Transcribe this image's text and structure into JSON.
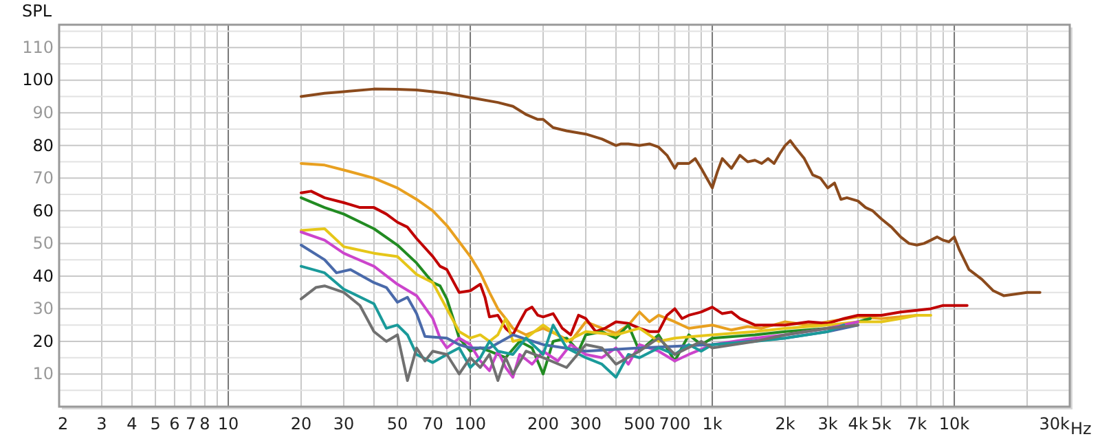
{
  "chart_data": {
    "type": "line",
    "ylabel": "SPL",
    "log": "x",
    "grid": true,
    "marker": "none",
    "line_style": "solid",
    "xlim": [
      2,
      30000
    ],
    "ylim": [
      0,
      117
    ],
    "xticks": [
      2,
      3,
      4,
      5,
      6,
      7,
      8,
      {
        "value": 9,
        "label": null
      },
      10,
      20,
      30,
      {
        "value": 40,
        "label": null
      },
      50,
      {
        "value": 60,
        "label": null
      },
      70,
      {
        "value": 80,
        "label": null
      },
      {
        "value": 90,
        "label": null
      },
      100,
      200,
      300,
      {
        "value": 400,
        "label": null
      },
      500,
      {
        "value": 600,
        "label": null
      },
      700,
      {
        "value": 800,
        "label": null
      },
      {
        "value": 900,
        "label": null
      },
      {
        "value": 1000,
        "label": "1k"
      },
      {
        "value": 2000,
        "label": "2k"
      },
      {
        "value": 3000,
        "label": "3k"
      },
      {
        "value": 4000,
        "label": "4k"
      },
      {
        "value": 5000,
        "label": "5k"
      },
      {
        "value": 6000,
        "label": null
      },
      {
        "value": 7000,
        "label": "7k"
      },
      {
        "value": 8000,
        "label": null
      },
      {
        "value": 9000,
        "label": null
      },
      {
        "value": 10000,
        "label": "10k"
      },
      {
        "value": 20000,
        "label": null
      },
      {
        "value": 30000,
        "label": "30k"
      }
    ],
    "xlabel": "Hz",
    "yticks": [
      {
        "value": 5,
        "label": null
      },
      10,
      {
        "value": 15,
        "label": null
      },
      20,
      {
        "value": 25,
        "label": null
      },
      30,
      {
        "value": 35,
        "label": null
      },
      40,
      {
        "value": 45,
        "label": null
      },
      50,
      {
        "value": 55,
        "label": null
      },
      60,
      {
        "value": 65,
        "label": null
      },
      70,
      {
        "value": 75,
        "label": null
      },
      80,
      {
        "value": 85,
        "label": null
      },
      90,
      {
        "value": 95,
        "label": null
      },
      100,
      {
        "value": 105,
        "label": null
      },
      110,
      {
        "value": 115,
        "label": null
      }
    ],
    "series": [
      {
        "color": "#8b4a1c",
        "x": [
          20,
          25,
          30,
          40,
          50,
          60,
          70,
          80,
          100,
          130,
          150,
          170,
          190,
          200,
          220,
          250,
          300,
          350,
          400,
          420,
          450,
          500,
          550,
          600,
          650,
          700,
          720,
          800,
          850,
          900,
          1000,
          1050,
          1100,
          1200,
          1300,
          1400,
          1500,
          1600,
          1700,
          1800,
          1900,
          2000,
          2100,
          2200,
          2400,
          2600,
          2800,
          3000,
          3200,
          3400,
          3600,
          4000,
          4300,
          4600,
          5000,
          5500,
          6000,
          6500,
          7000,
          7500,
          8000,
          8500,
          9000,
          9500,
          10000,
          10500,
          11500,
          13000,
          14500,
          16000,
          18000,
          20000,
          22600
        ],
        "values": [
          95,
          96,
          96.5,
          97.3,
          97.2,
          97,
          96.5,
          96,
          94.7,
          93.2,
          92,
          89.5,
          88,
          88,
          85.5,
          84.5,
          83.5,
          82,
          80,
          80.5,
          80.5,
          80,
          80.5,
          79.5,
          77,
          73,
          74.5,
          74.5,
          76,
          73,
          67,
          72,
          76,
          73,
          77,
          75,
          75.5,
          74.5,
          76,
          74.5,
          77.5,
          80,
          81.5,
          79.5,
          76,
          71,
          70,
          67,
          68.5,
          63.5,
          64,
          63,
          61,
          60,
          57.5,
          55,
          52,
          50,
          49.5,
          50,
          51,
          52,
          51,
          50.5,
          52,
          48,
          42,
          39,
          35.5,
          34,
          34.5,
          35,
          35
        ]
      },
      {
        "color": "#e8a020",
        "x": [
          20,
          25,
          30,
          40,
          50,
          60,
          70,
          80,
          90,
          100,
          110,
          120,
          130,
          140,
          150,
          170,
          200,
          230,
          260,
          300,
          350,
          400,
          450,
          500,
          550,
          600,
          700,
          800,
          900,
          1000,
          1200,
          1400,
          1600,
          2000,
          2500,
          3000,
          4000,
          5000,
          6000,
          7000,
          7800
        ],
        "values": [
          74.5,
          74,
          72.5,
          70,
          67,
          63.5,
          60,
          55.5,
          50.5,
          46,
          41,
          35,
          30,
          27,
          24,
          22,
          24,
          22,
          20,
          26,
          24,
          22.5,
          25,
          29,
          26,
          28,
          26,
          24,
          24.5,
          25,
          23.5,
          24.5,
          24,
          26,
          25,
          26,
          27.5,
          27,
          27.5,
          28,
          28
        ]
      },
      {
        "color": "#c00000",
        "x": [
          20,
          22,
          25,
          30,
          35,
          40,
          45,
          50,
          55,
          60,
          70,
          75,
          80,
          90,
          100,
          110,
          115,
          120,
          130,
          140,
          150,
          160,
          170,
          180,
          190,
          200,
          220,
          240,
          260,
          280,
          300,
          330,
          360,
          400,
          450,
          500,
          550,
          600,
          650,
          700,
          750,
          800,
          900,
          1000,
          1100,
          1200,
          1300,
          1400,
          1500,
          2000,
          2500,
          3000,
          3500,
          4000,
          5000,
          6000,
          7000,
          8000,
          9000,
          10000,
          11300
        ],
        "values": [
          65.5,
          66,
          64,
          62.5,
          61,
          61,
          59,
          56.5,
          55,
          51.5,
          46,
          43,
          42,
          35,
          35.5,
          37.5,
          33.5,
          27.5,
          28,
          24,
          22,
          26,
          29.5,
          30.5,
          28,
          27.5,
          28.5,
          24,
          22,
          28,
          27,
          23,
          24,
          26,
          25.5,
          24,
          23,
          23,
          28,
          30,
          27,
          28,
          29,
          30.5,
          28.5,
          29,
          27,
          26,
          25,
          25,
          26,
          25.5,
          27,
          28,
          28,
          29,
          29.5,
          30,
          31,
          31,
          31
        ]
      },
      {
        "color": "#228b22",
        "x": [
          20,
          25,
          30,
          40,
          50,
          60,
          70,
          75,
          80,
          85,
          90,
          100,
          110,
          120,
          140,
          160,
          180,
          200,
          220,
          250,
          280,
          300,
          350,
          400,
          450,
          500,
          600,
          700,
          800,
          900,
          1000,
          1500,
          2000,
          3000,
          4000,
          4500
        ],
        "values": [
          64,
          61,
          59,
          54.5,
          49.5,
          44,
          38,
          37,
          33,
          27,
          21,
          17,
          18,
          17,
          15,
          20,
          18,
          10,
          20,
          21,
          17,
          22,
          23,
          21,
          25,
          17,
          22,
          14,
          22,
          19,
          21,
          22,
          23,
          24,
          26,
          27
        ]
      },
      {
        "color": "#e6c619",
        "x": [
          20,
          25,
          30,
          40,
          50,
          60,
          70,
          80,
          90,
          100,
          110,
          120,
          130,
          140,
          150,
          170,
          200,
          250,
          300,
          400,
          500,
          600,
          700,
          1000,
          1500,
          2000,
          3000,
          4000,
          5000,
          6000,
          7000,
          8000
        ],
        "values": [
          54,
          54.5,
          49,
          47,
          46,
          40.5,
          38,
          30,
          23,
          21,
          22,
          20,
          22,
          27,
          20,
          21,
          25,
          20,
          23,
          22,
          24,
          20,
          21,
          22,
          23,
          24,
          25,
          26,
          26,
          27,
          28,
          28
        ]
      },
      {
        "color": "#cc44cc",
        "x": [
          20,
          25,
          30,
          40,
          50,
          60,
          70,
          75,
          80,
          90,
          100,
          110,
          120,
          130,
          140,
          150,
          160,
          180,
          200,
          230,
          260,
          300,
          350,
          400,
          450,
          500,
          600,
          700,
          800,
          1000,
          1500,
          2000,
          3000,
          4000
        ],
        "values": [
          53.5,
          51,
          47,
          43,
          37.5,
          34,
          27,
          21,
          18,
          21,
          19,
          14,
          11,
          17,
          12,
          9,
          16,
          13,
          17,
          14,
          19,
          16,
          15,
          18,
          13,
          19,
          17,
          14,
          16,
          19,
          21,
          22,
          24,
          26
        ]
      },
      {
        "color": "#4a6aaa",
        "x": [
          20,
          25,
          28,
          32,
          40,
          45,
          50,
          55,
          60,
          65,
          80,
          90,
          100,
          120,
          150,
          200,
          300,
          500,
          1000,
          2000,
          3000,
          4000
        ],
        "values": [
          49.5,
          45,
          41,
          42,
          38,
          36.5,
          32,
          33.5,
          28.5,
          21.5,
          21,
          19,
          18,
          18,
          22,
          19,
          17,
          18,
          19,
          21,
          23,
          25
        ]
      },
      {
        "color": "#1a9a9a",
        "x": [
          20,
          25,
          30,
          40,
          45,
          50,
          55,
          60,
          70,
          80,
          90,
          100,
          110,
          120,
          130,
          150,
          170,
          200,
          220,
          250,
          300,
          350,
          400,
          450,
          500,
          600,
          700,
          800,
          900,
          1000,
          1500,
          2000,
          3000,
          3500
        ],
        "values": [
          43,
          41,
          36,
          31.5,
          24,
          25,
          22,
          16,
          13.5,
          16,
          18,
          12,
          15,
          20,
          17,
          16,
          21,
          16,
          25,
          18,
          15,
          13,
          9,
          16,
          15,
          18,
          16,
          19,
          17,
          19,
          20,
          21,
          23,
          25
        ]
      },
      {
        "color": "#707070",
        "x": [
          20,
          23,
          25,
          30,
          35,
          40,
          45,
          50,
          55,
          60,
          65,
          70,
          80,
          90,
          100,
          110,
          120,
          130,
          140,
          150,
          170,
          200,
          250,
          300,
          350,
          400,
          500,
          600,
          700,
          900,
          1000,
          1500,
          2000,
          3000,
          4000
        ],
        "values": [
          33,
          36.5,
          37,
          35,
          31,
          23,
          20,
          22,
          8,
          18,
          14,
          17,
          16,
          10,
          15,
          12,
          16,
          8,
          15,
          10,
          17,
          15,
          12,
          19,
          18,
          13,
          17,
          21,
          16,
          20,
          18,
          20,
          22,
          24,
          25
        ]
      }
    ]
  }
}
